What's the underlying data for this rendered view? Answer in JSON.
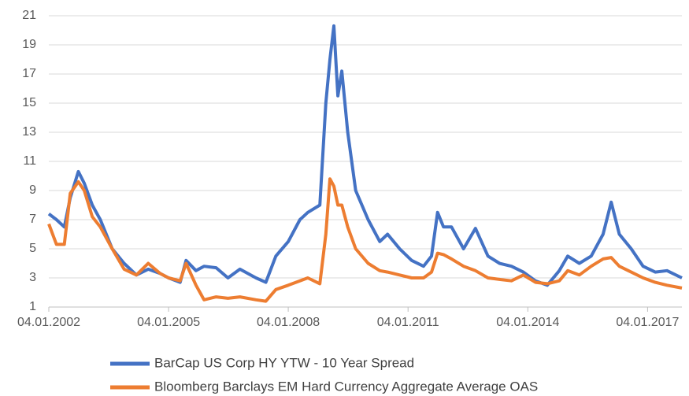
{
  "chart_data": {
    "type": "line",
    "x": [
      "04.01.2002",
      "15.03.2002",
      "26.05.2002",
      "19.07.2002",
      "01.10.2002",
      "24.11.2002",
      "06.02.2003",
      "20.04.2003",
      "07.08.2003",
      "24.11.2003",
      "15.03.2004",
      "01.07.2004",
      "19.10.2004",
      "04.01.2005",
      "20.04.2005",
      "13.06.2005",
      "12.09.2005",
      "24.11.2005",
      "15.03.2006",
      "01.07.2006",
      "19.10.2006",
      "15.03.2007",
      "13.06.2007",
      "12.09.2007",
      "04.01.2008",
      "20.04.2008",
      "01.07.2008",
      "19.10.2008",
      "13.12.2008",
      "19.01.2009",
      "24.02.2009",
      "02.04.2009",
      "08.05.2009",
      "01.07.2009",
      "12.09.2009",
      "04.01.2010",
      "20.04.2010",
      "01.07.2010",
      "19.10.2010",
      "06.02.2011",
      "26.05.2011",
      "07.08.2011",
      "01.10.2011",
      "24.11.2011",
      "06.02.2012",
      "26.05.2012",
      "12.09.2012",
      "04.01.2013",
      "20.04.2013",
      "07.08.2013",
      "24.11.2013",
      "15.03.2014",
      "01.07.2014",
      "19.10.2014",
      "04.01.2015",
      "20.04.2015",
      "07.08.2015",
      "24.11.2015",
      "06.02.2016",
      "20.04.2016",
      "07.08.2016",
      "24.11.2016",
      "15.03.2017",
      "01.07.2017",
      "14.11.2017"
    ],
    "series": [
      {
        "name": "BarCap US Corp HY YTW - 10 Year Spread",
        "color": "#4472c4",
        "values": [
          7.4,
          7.0,
          6.5,
          8.5,
          10.3,
          9.5,
          8.0,
          7.0,
          5.0,
          4.0,
          3.2,
          3.6,
          3.3,
          3.0,
          2.7,
          4.2,
          3.5,
          3.8,
          3.7,
          3.0,
          3.6,
          3.0,
          2.7,
          4.5,
          5.5,
          7.0,
          7.5,
          8.0,
          15.0,
          18.0,
          20.3,
          15.5,
          17.2,
          13.0,
          9.0,
          7.0,
          5.5,
          6.0,
          5.0,
          4.2,
          3.8,
          4.5,
          7.5,
          6.5,
          6.5,
          5.0,
          6.4,
          4.5,
          4.0,
          3.8,
          3.4,
          2.8,
          2.5,
          3.5,
          4.5,
          4.0,
          4.5,
          6.0,
          8.2,
          6.0,
          5.0,
          3.8,
          3.4,
          3.5,
          3.0
        ]
      },
      {
        "name": "Bloomberg Barclays EM Hard Currency Aggregate Average OAS",
        "color": "#ed7d31",
        "values": [
          6.7,
          5.3,
          5.3,
          8.8,
          9.6,
          9.0,
          7.2,
          6.5,
          5.0,
          3.6,
          3.2,
          4.0,
          3.3,
          3.0,
          2.8,
          4.0,
          2.5,
          1.5,
          1.7,
          1.6,
          1.7,
          1.5,
          1.4,
          2.2,
          2.5,
          2.8,
          3.0,
          2.6,
          6.0,
          9.8,
          9.3,
          8.0,
          8.0,
          6.5,
          5.0,
          4.0,
          3.5,
          3.4,
          3.2,
          3.0,
          3.0,
          3.4,
          4.7,
          4.6,
          4.3,
          3.8,
          3.5,
          3.0,
          2.9,
          2.8,
          3.2,
          2.7,
          2.6,
          2.8,
          3.5,
          3.2,
          3.8,
          4.3,
          4.4,
          3.8,
          3.4,
          3.0,
          2.7,
          2.5,
          2.3
        ]
      }
    ],
    "xlim": [
      "04.01.2002",
      "14.11.2017"
    ],
    "xticks": [
      "04.01.2002",
      "04.01.2005",
      "04.01.2008",
      "04.01.2011",
      "04.01.2014",
      "04.01.2017"
    ],
    "ylim": [
      1,
      21
    ],
    "yticks": [
      1,
      3,
      5,
      7,
      9,
      11,
      13,
      15,
      17,
      19,
      21
    ],
    "grid": true,
    "legend": "bottom"
  }
}
